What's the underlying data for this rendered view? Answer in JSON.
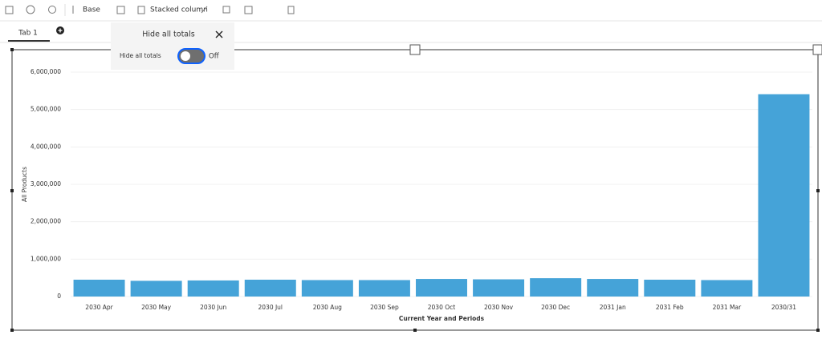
{
  "toolbar": {
    "base": "Base",
    "chart_type": "Stacked column"
  },
  "tabs": [
    "Tab 1"
  ],
  "popup": {
    "title": "Hide all totals",
    "toggle_label": "Hide all totals",
    "toggle_state": "Off"
  },
  "chart_data": {
    "type": "bar",
    "categories": [
      "2030 Apr",
      "2030 May",
      "2030 Jun",
      "2030 Jul",
      "2030 Aug",
      "2030 Sep",
      "2030 Oct",
      "2030 Nov",
      "2030 Dec",
      "2031 Jan",
      "2031 Feb",
      "2031 Mar",
      "2030/31"
    ],
    "values": [
      450000,
      420000,
      430000,
      450000,
      440000,
      440000,
      470000,
      460000,
      490000,
      470000,
      450000,
      440000,
      5410000
    ],
    "color": "#45a3d8",
    "x_label": "Current Year and Periods",
    "y_label": "All Products",
    "ylim": [
      0,
      6000000
    ],
    "yticks": [
      0,
      {
        "value": 1000000,
        "label": "1,000,000"
      },
      {
        "value": 2000000,
        "label": "2,000,000"
      },
      {
        "value": 3000000,
        "label": "3,000,000"
      },
      {
        "value": 4000000,
        "label": "4,000,000"
      },
      {
        "value": 5000000,
        "label": "5,000,000"
      },
      {
        "value": 6000000,
        "label": "6,000,000"
      }
    ],
    "grid": true
  }
}
